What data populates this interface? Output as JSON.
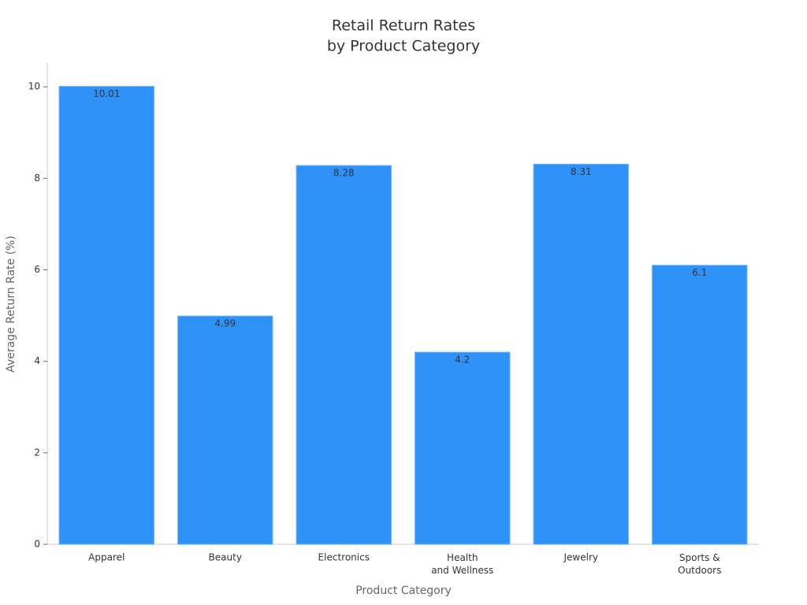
{
  "chart_data": {
    "type": "bar",
    "title": [
      "Retail Return Rates",
      "by Product Category"
    ],
    "x_label": "Product Category",
    "y_label": "Average Return Rate (%)",
    "categories": [
      "Apparel",
      "Beauty",
      "Electronics",
      "Health\nand Wellness",
      "Jewelry",
      "Sports &\nOutdoors"
    ],
    "values": [
      10.01,
      4.99,
      8.28,
      4.2,
      8.31,
      6.1
    ],
    "color": "#2f92f9",
    "ylim": [
      0,
      10.52
    ],
    "yticks": [
      0,
      2,
      4,
      6,
      8,
      10
    ],
    "grid": false
  }
}
